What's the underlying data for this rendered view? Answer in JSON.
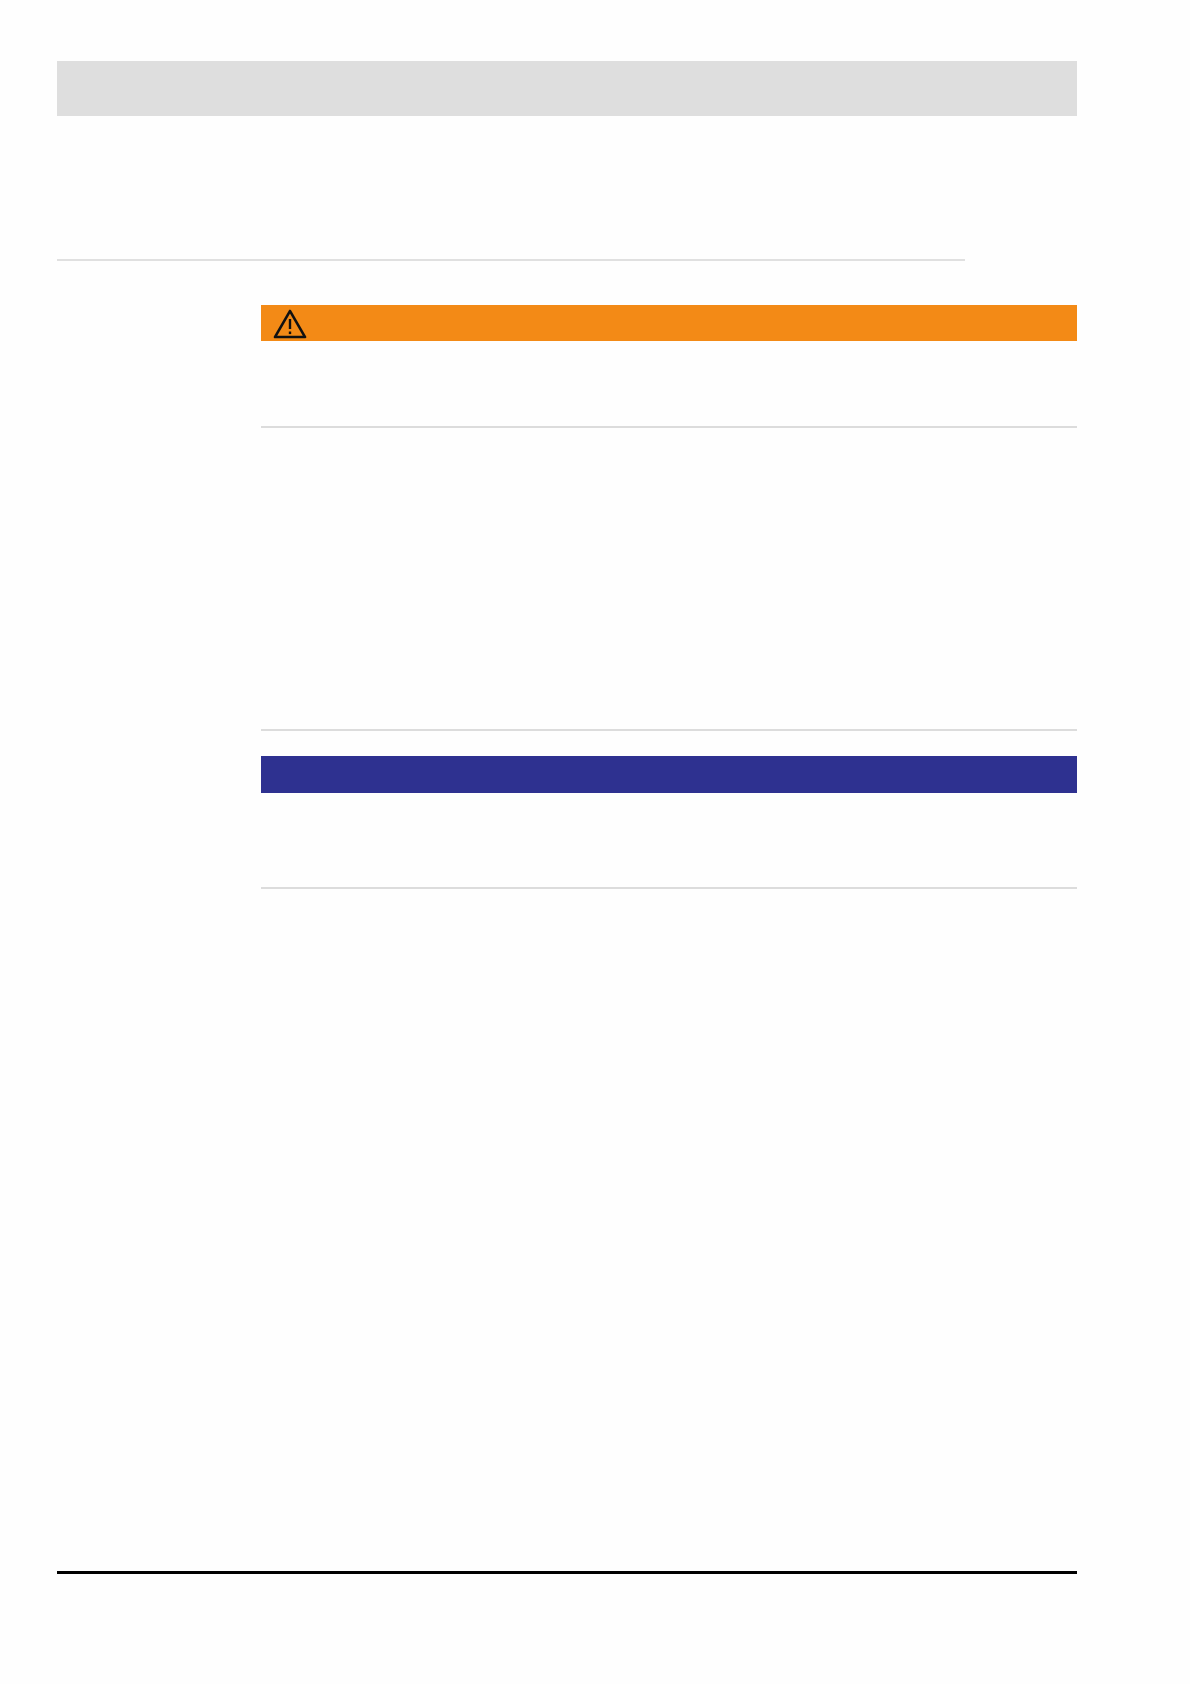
{
  "colors": {
    "header_bar": "#dedede",
    "warning_bar": "#f38a16",
    "note_bar": "#2e3190",
    "footer_rule": "#000000"
  },
  "warning": {
    "icon": "warning-triangle-icon"
  }
}
